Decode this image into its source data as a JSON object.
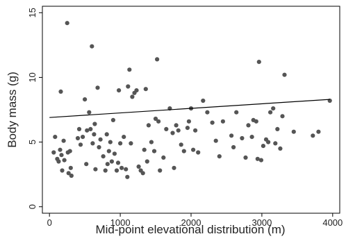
{
  "chart_data": {
    "type": "scatter",
    "title": "",
    "xlabel": "Mid-point elevational distribution (m)",
    "ylabel": "Body mass (g)",
    "xlim": [
      -100,
      4100
    ],
    "ylim": [
      -0.5,
      15.5
    ],
    "xticks": [
      0,
      1000,
      2000,
      3000,
      4000
    ],
    "yticks": [
      0,
      5,
      10,
      15
    ],
    "grid": false,
    "legend": "none",
    "point_color": "#555555",
    "line_color": "#000000",
    "points": [
      [
        60,
        4.2
      ],
      [
        80,
        5.4
      ],
      [
        110,
        3.7
      ],
      [
        130,
        3.5
      ],
      [
        150,
        4.4
      ],
      [
        160,
        8.9
      ],
      [
        170,
        4.0
      ],
      [
        180,
        2.8
      ],
      [
        200,
        5.1
      ],
      [
        210,
        3.6
      ],
      [
        250,
        14.2
      ],
      [
        260,
        4.2
      ],
      [
        270,
        2.6
      ],
      [
        290,
        4.3
      ],
      [
        300,
        3.0
      ],
      [
        310,
        2.4
      ],
      [
        400,
        5.3
      ],
      [
        420,
        6.0
      ],
      [
        440,
        4.8
      ],
      [
        470,
        5.4
      ],
      [
        500,
        8.3
      ],
      [
        520,
        3.3
      ],
      [
        530,
        5.9
      ],
      [
        560,
        7.3
      ],
      [
        580,
        6.0
      ],
      [
        600,
        12.4
      ],
      [
        610,
        4.9
      ],
      [
        630,
        5.6
      ],
      [
        640,
        6.4
      ],
      [
        650,
        2.9
      ],
      [
        680,
        9.2
      ],
      [
        700,
        4.6
      ],
      [
        720,
        5.2
      ],
      [
        760,
        3.9
      ],
      [
        790,
        2.8
      ],
      [
        810,
        5.6
      ],
      [
        820,
        3.3
      ],
      [
        840,
        4.3
      ],
      [
        860,
        5.0
      ],
      [
        880,
        3.5
      ],
      [
        900,
        6.7
      ],
      [
        920,
        4.1
      ],
      [
        950,
        2.8
      ],
      [
        970,
        3.4
      ],
      [
        980,
        9.0
      ],
      [
        1000,
        4.9
      ],
      [
        1020,
        3.0
      ],
      [
        1050,
        5.4
      ],
      [
        1080,
        2.9
      ],
      [
        1100,
        2.3
      ],
      [
        1110,
        9.3
      ],
      [
        1130,
        10.6
      ],
      [
        1150,
        4.9
      ],
      [
        1170,
        8.5
      ],
      [
        1200,
        8.8
      ],
      [
        1230,
        9.0
      ],
      [
        1260,
        3.1
      ],
      [
        1290,
        2.8
      ],
      [
        1320,
        2.6
      ],
      [
        1340,
        4.4
      ],
      [
        1360,
        9.1
      ],
      [
        1380,
        3.5
      ],
      [
        1400,
        6.3
      ],
      [
        1440,
        5.0
      ],
      [
        1480,
        4.3
      ],
      [
        1500,
        6.8
      ],
      [
        1520,
        11.4
      ],
      [
        1540,
        6.6
      ],
      [
        1560,
        2.8
      ],
      [
        1610,
        3.8
      ],
      [
        1650,
        6.0
      ],
      [
        1700,
        7.6
      ],
      [
        1740,
        5.7
      ],
      [
        1760,
        3.0
      ],
      [
        1790,
        6.3
      ],
      [
        1820,
        5.9
      ],
      [
        1860,
        4.8
      ],
      [
        1900,
        4.3
      ],
      [
        1950,
        6.1
      ],
      [
        1970,
        6.6
      ],
      [
        2000,
        7.6
      ],
      [
        2030,
        4.4
      ],
      [
        2060,
        5.9
      ],
      [
        2100,
        4.2
      ],
      [
        2170,
        8.2
      ],
      [
        2230,
        7.3
      ],
      [
        2300,
        6.5
      ],
      [
        2350,
        5.1
      ],
      [
        2400,
        3.9
      ],
      [
        2450,
        6.6
      ],
      [
        2570,
        5.5
      ],
      [
        2600,
        4.6
      ],
      [
        2640,
        7.3
      ],
      [
        2720,
        5.3
      ],
      [
        2770,
        3.8
      ],
      [
        2810,
        6.3
      ],
      [
        2860,
        5.4
      ],
      [
        2880,
        6.7
      ],
      [
        2920,
        6.6
      ],
      [
        2940,
        3.7
      ],
      [
        2960,
        11.2
      ],
      [
        2990,
        3.6
      ],
      [
        3020,
        4.7
      ],
      [
        3060,
        5.2
      ],
      [
        3090,
        5.0
      ],
      [
        3120,
        7.3
      ],
      [
        3160,
        7.6
      ],
      [
        3190,
        4.9
      ],
      [
        3220,
        6.0
      ],
      [
        3260,
        4.5
      ],
      [
        3290,
        7.0
      ],
      [
        3320,
        10.2
      ],
      [
        3450,
        5.8
      ],
      [
        3720,
        5.5
      ],
      [
        3800,
        5.8
      ],
      [
        3960,
        8.2
      ]
    ],
    "fit_line": {
      "x": [
        0,
        3960
      ],
      "y": [
        6.9,
        8.3
      ]
    }
  }
}
